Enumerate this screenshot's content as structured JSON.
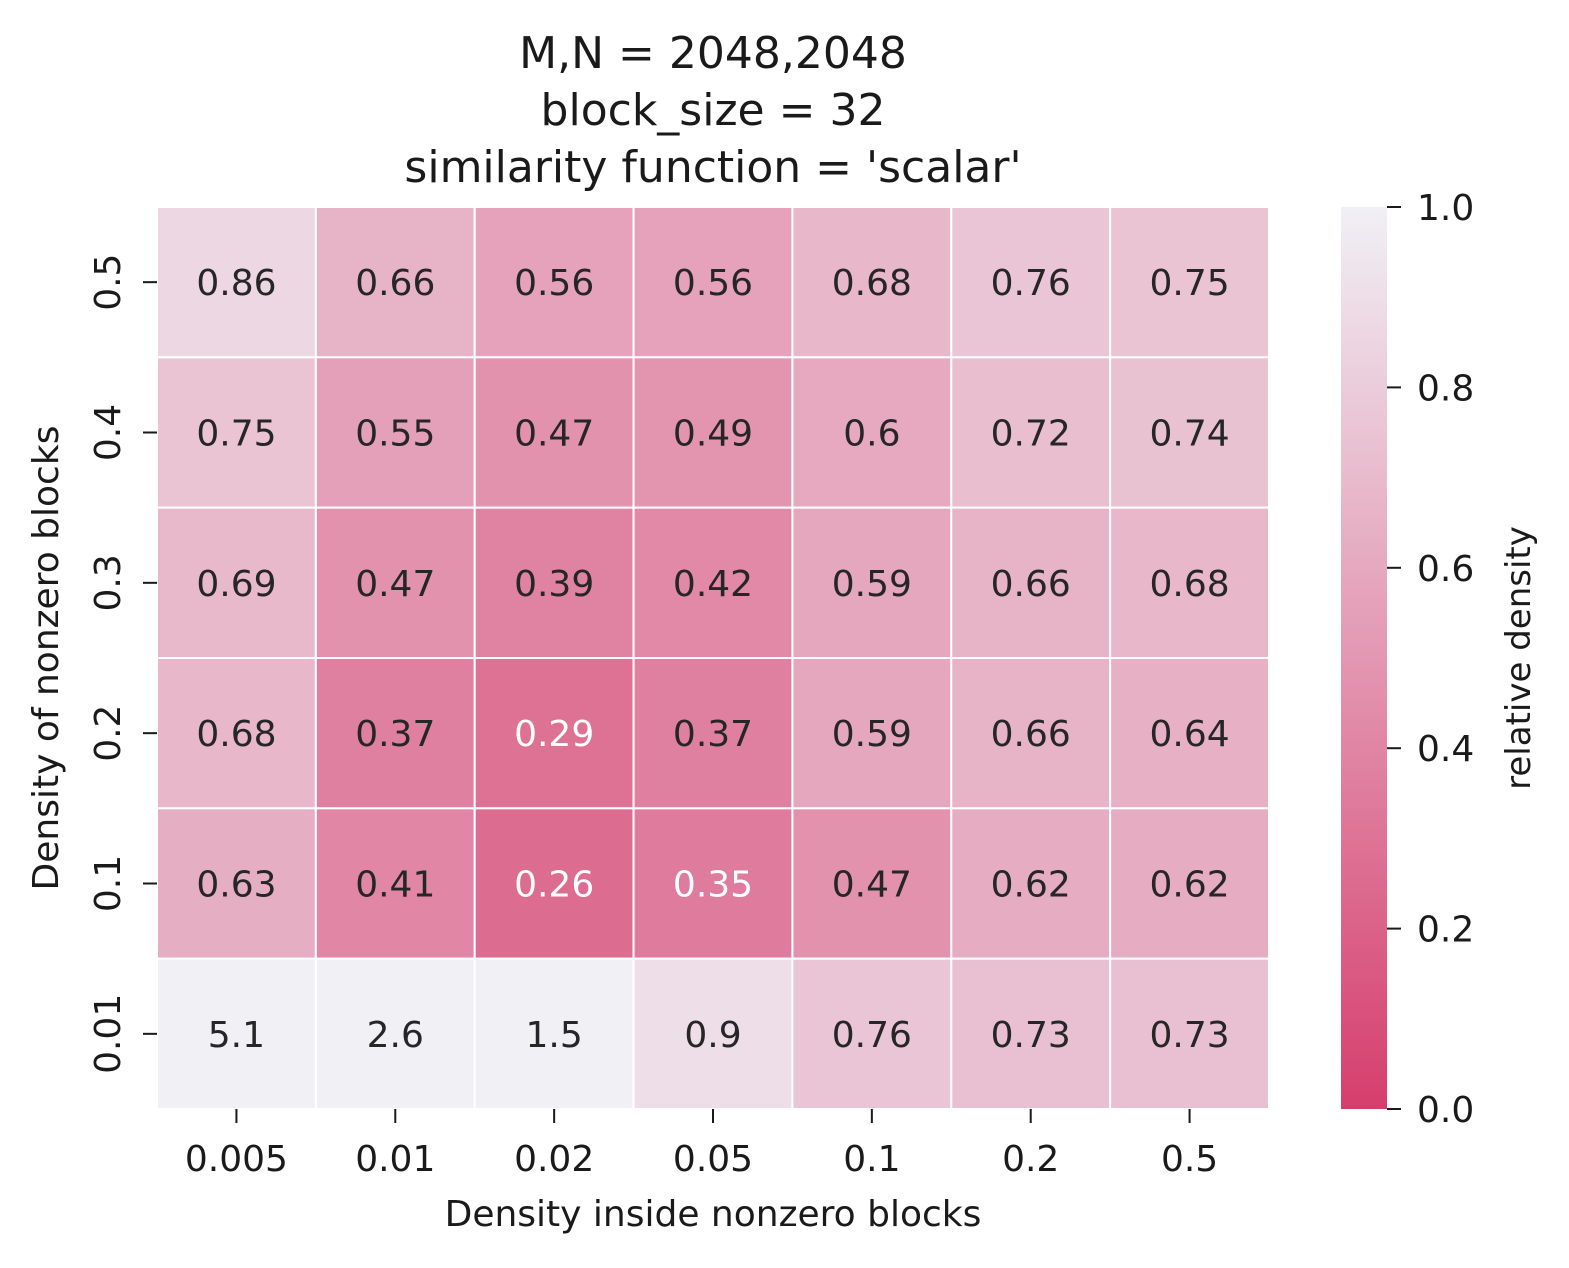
{
  "chart_data": {
    "type": "heatmap",
    "title_lines": [
      "M,N = 2048,2048",
      "block_size = 32",
      "similarity function = 'scalar'"
    ],
    "xlabel": "Density inside nonzero blocks",
    "ylabel": "Density of nonzero blocks",
    "x_categories": [
      "0.005",
      "0.01",
      "0.02",
      "0.05",
      "0.1",
      "0.2",
      "0.5"
    ],
    "y_categories": [
      "0.5",
      "0.4",
      "0.3",
      "0.2",
      "0.1",
      "0.01"
    ],
    "values": [
      [
        0.86,
        0.66,
        0.56,
        0.56,
        0.68,
        0.76,
        0.75
      ],
      [
        0.75,
        0.55,
        0.47,
        0.49,
        0.6,
        0.72,
        0.74
      ],
      [
        0.69,
        0.47,
        0.39,
        0.42,
        0.59,
        0.66,
        0.68
      ],
      [
        0.68,
        0.37,
        0.29,
        0.37,
        0.59,
        0.66,
        0.64
      ],
      [
        0.63,
        0.41,
        0.26,
        0.35,
        0.47,
        0.62,
        0.62
      ],
      [
        5.1,
        2.6,
        1.5,
        0.9,
        0.76,
        0.73,
        0.73
      ]
    ],
    "colorbar": {
      "label": "relative density",
      "range": [
        0.0,
        1.0
      ],
      "ticks": [
        "0.0",
        "0.2",
        "0.4",
        "0.6",
        "0.8",
        "1.0"
      ],
      "color_low": "#d63e6e",
      "color_high": "#f0f0f5"
    }
  }
}
